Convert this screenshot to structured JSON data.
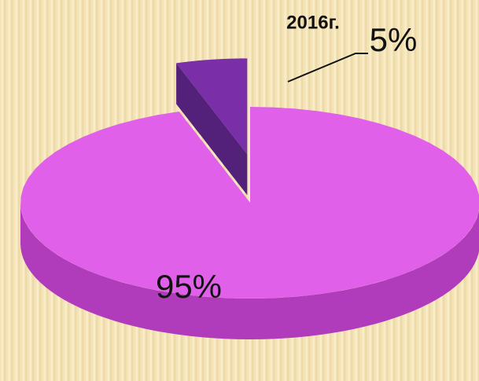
{
  "chart_data": {
    "type": "pie",
    "title": "2016г.",
    "values": [
      95,
      5
    ],
    "value_labels": [
      "95%",
      "5%"
    ],
    "colors": [
      "#e060ea",
      "#7a2ea8"
    ],
    "side_colors": [
      "#b03cbc",
      "#53207a"
    ]
  }
}
